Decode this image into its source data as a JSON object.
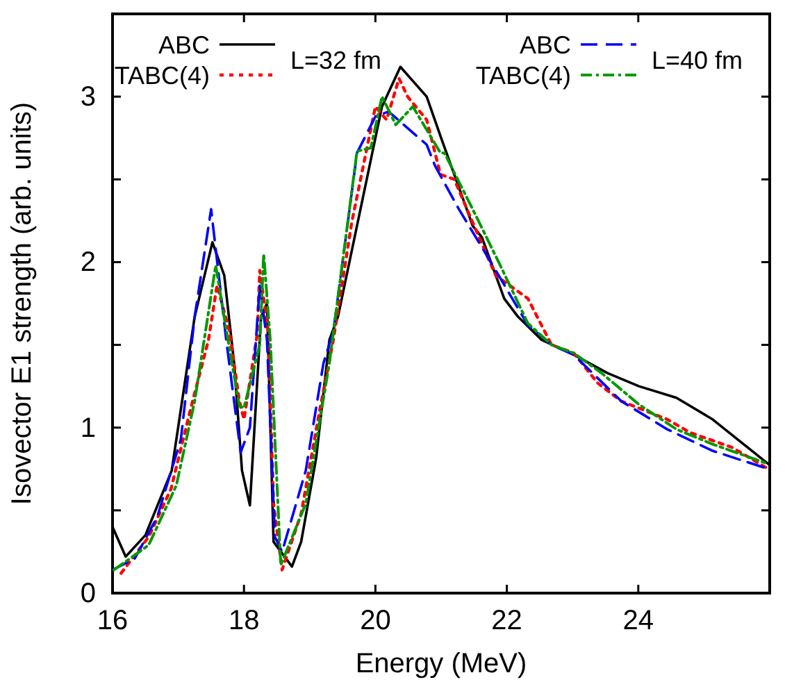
{
  "chart_data": {
    "type": "line",
    "xlabel": "Energy (MeV)",
    "ylabel": "Isovector E1 strength (arb. units)",
    "xlim": [
      16,
      26
    ],
    "xticks": [
      16,
      18,
      20,
      22,
      24
    ],
    "ylim": [
      0,
      3.5
    ],
    "yticks": [
      0,
      {
        "value": 0.5,
        "label": null
      },
      1,
      {
        "value": 1.5,
        "label": null
      },
      2,
      {
        "value": 2.5,
        "label": null
      },
      3
    ],
    "grid": false,
    "legend": "top",
    "marker": "none",
    "annotations": [
      "L=32 fm",
      "L=40 fm"
    ],
    "series": [
      {
        "name": "ABC",
        "color": "#000000",
        "line_style": "solid",
        "x": [
          16,
          16.2,
          16.5,
          16.9,
          17.25,
          17.52,
          17.7,
          17.85,
          17.97,
          18.09,
          18.26,
          18.35,
          18.45,
          18.73,
          18.87,
          19.1,
          19.3,
          19.43,
          20.1,
          20.38,
          20.78,
          21.0,
          21.48,
          21.62,
          21.96,
          22.17,
          22.53,
          23.02,
          23.53,
          24.01,
          24.58,
          25.13,
          25.98
        ],
        "values": [
          0.4,
          0.22,
          0.35,
          0.74,
          1.67,
          2.12,
          1.92,
          1.39,
          0.74,
          0.53,
          1.67,
          1.75,
          0.31,
          0.16,
          0.31,
          0.82,
          1.53,
          1.67,
          2.94,
          3.18,
          3.0,
          2.75,
          2.22,
          2.15,
          1.78,
          1.67,
          1.53,
          1.44,
          1.33,
          1.25,
          1.18,
          1.05,
          0.78
        ]
      },
      {
        "name": "TABC(4)",
        "color": "#ff0000",
        "line_style": "dotted",
        "x": [
          16.13,
          16.55,
          16.89,
          17.18,
          17.46,
          17.59,
          17.78,
          17.93,
          18.0,
          18.2,
          18.24,
          18.37,
          18.45,
          18.58,
          18.87,
          19.15,
          19.36,
          19.64,
          20.0,
          20.17,
          20.36,
          20.49,
          20.78,
          20.99,
          21.2,
          21.48,
          21.83,
          22.32,
          22.68,
          23.02,
          23.38,
          23.74,
          24.44,
          24.79,
          25.43,
          25.98
        ],
        "values": [
          0.12,
          0.34,
          0.63,
          1.1,
          1.53,
          1.86,
          1.58,
          1.16,
          1.05,
          1.56,
          1.95,
          1.58,
          0.54,
          0.14,
          0.48,
          1.1,
          1.53,
          2.24,
          2.94,
          2.86,
          3.11,
          3.0,
          2.86,
          2.53,
          2.5,
          2.24,
          1.92,
          1.78,
          1.5,
          1.45,
          1.27,
          1.16,
          1.05,
          0.97,
          0.88,
          0.75
        ]
      },
      {
        "name": "ABC",
        "color": "#0000ff",
        "line_style": "dashed",
        "x": [
          16,
          16.34,
          16.68,
          17.04,
          17.25,
          17.5,
          17.73,
          17.95,
          18.09,
          18.24,
          18.35,
          18.47,
          18.58,
          18.94,
          19.21,
          19.36,
          19.72,
          20.0,
          20.2,
          20.78,
          20.91,
          21.27,
          21.62,
          21.83,
          22.32,
          22.68,
          23.02,
          23.74,
          24.44,
          25.13,
          25.98
        ],
        "values": [
          0.14,
          0.21,
          0.46,
          0.93,
          1.67,
          2.32,
          1.53,
          0.85,
          1.0,
          1.86,
          1.53,
          0.34,
          0.25,
          0.74,
          1.39,
          1.58,
          2.66,
          2.88,
          2.91,
          2.71,
          2.58,
          2.32,
          2.09,
          1.95,
          1.62,
          1.5,
          1.44,
          1.16,
          0.99,
          0.86,
          0.75
        ]
      },
      {
        "name": "TABC(4)",
        "color": "#009900",
        "line_style": "dashdot",
        "x": [
          16.02,
          16.55,
          16.97,
          17.25,
          17.57,
          17.71,
          17.93,
          18.0,
          18.24,
          18.3,
          18.4,
          18.56,
          18.94,
          19.3,
          19.72,
          19.93,
          20.1,
          20.31,
          20.57,
          20.99,
          21.05,
          21.48,
          21.9,
          22.32,
          22.68,
          23.02,
          23.44,
          24.01,
          24.58,
          25.13,
          25.98
        ],
        "values": [
          0.14,
          0.29,
          0.65,
          1.16,
          1.98,
          1.64,
          1.13,
          1.12,
          1.5,
          2.05,
          1.53,
          0.17,
          0.54,
          1.39,
          2.67,
          2.69,
          3.0,
          2.83,
          2.94,
          2.66,
          2.66,
          2.32,
          1.98,
          1.63,
          1.5,
          1.45,
          1.33,
          1.14,
          0.99,
          0.9,
          0.78
        ]
      }
    ]
  }
}
